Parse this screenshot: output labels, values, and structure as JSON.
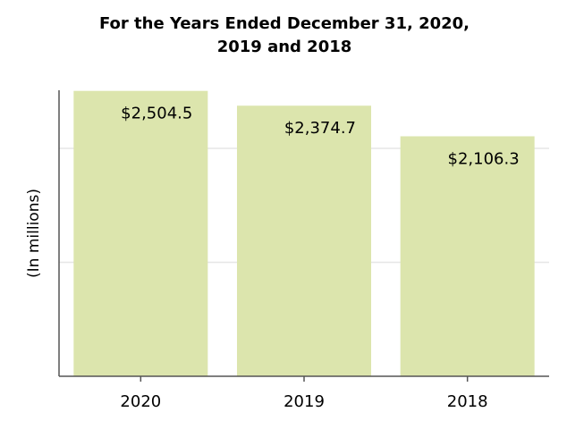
{
  "chart_data": {
    "type": "bar",
    "title": "For the Years Ended December 31, 2020, 2019 and 2018",
    "y_label": "(In millions)",
    "categories": [
      "2020",
      "2019",
      "2018"
    ],
    "values": [
      2504.5,
      2374.7,
      2106.3
    ],
    "value_labels": [
      "$2,504.5",
      "$2,374.7",
      "$2,106.3"
    ],
    "color": "#dce5ad",
    "ylim": [
      0,
      2510
    ],
    "yticks": [
      1000,
      2000
    ],
    "grid": true
  }
}
